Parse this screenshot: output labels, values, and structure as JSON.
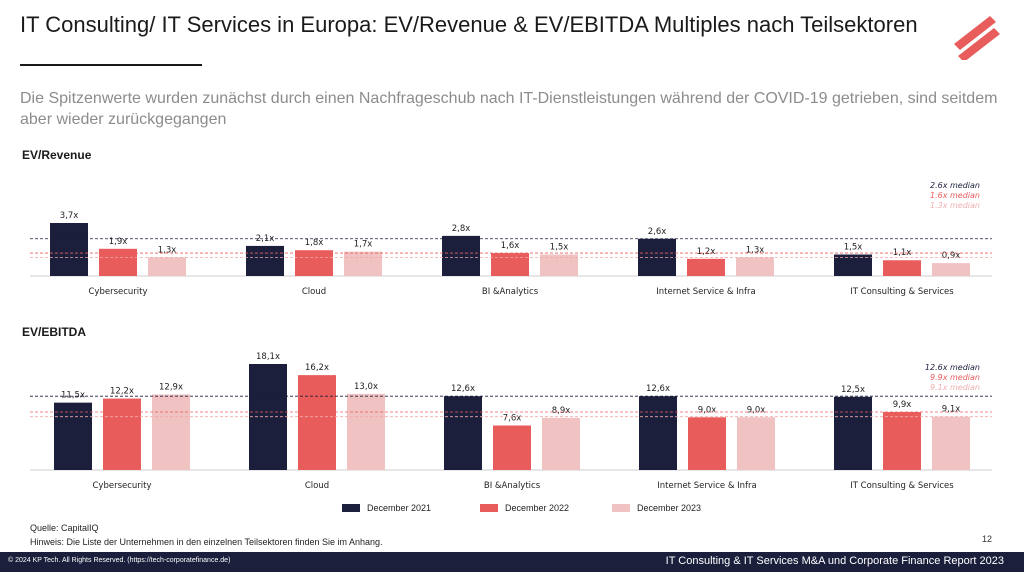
{
  "header": {
    "title": "IT Consulting/ IT Services in Europa: EV/Revenue & EV/EBITDA Multiples nach Teilsektoren",
    "subtitle": "Die Spitzenwerte wurden zunächst durch einen Nachfrageschub nach IT-Dienstleistungen während der COVID-19 getrieben, sind seitdem aber wieder zurückgegangen"
  },
  "colors": {
    "dec2021": "#1b1f3b",
    "dec2022": "#e85c5c",
    "dec2023": "#f0c2c2",
    "logo": "#e85c5c"
  },
  "chart_data": [
    {
      "type": "bar",
      "title": "EV/Revenue",
      "categories": [
        "Cybersecurity",
        "Cloud",
        "BI &Analytics",
        "Internet Service & Infra",
        "IT Consulting & Services"
      ],
      "series": [
        {
          "name": "December 2021",
          "values": [
            3.7,
            2.1,
            2.8,
            2.6,
            1.5
          ],
          "labels": [
            "3,7x",
            "2,1x",
            "2,8x",
            "2,6x",
            "1,5x"
          ]
        },
        {
          "name": "December 2022",
          "values": [
            1.9,
            1.8,
            1.6,
            1.2,
            1.1
          ],
          "labels": [
            "1,9x",
            "1,8x",
            "1,6x",
            "1,2x",
            "1,1x"
          ]
        },
        {
          "name": "December 2023",
          "values": [
            1.3,
            1.7,
            1.5,
            1.3,
            0.9
          ],
          "labels": [
            "1,3x",
            "1,7x",
            "1,5x",
            "1,3x",
            "0,9x"
          ]
        }
      ],
      "medians": [
        {
          "label": "2.6x median",
          "value": 2.6
        },
        {
          "label": "1.6x median",
          "value": 1.6
        },
        {
          "label": "1.3x median",
          "value": 1.3
        }
      ],
      "ylim": [
        0,
        3.7
      ]
    },
    {
      "type": "bar",
      "title": "EV/EBITDA",
      "categories": [
        "Cybersecurity",
        "Cloud",
        "BI &Analytics",
        "Internet Service & Infra",
        "IT Consulting & Services"
      ],
      "series": [
        {
          "name": "December 2021",
          "values": [
            11.5,
            18.1,
            12.6,
            12.6,
            12.5
          ],
          "labels": [
            "11,5x",
            "18,1x",
            "12,6x",
            "12,6x",
            "12,5x"
          ]
        },
        {
          "name": "December 2022",
          "values": [
            12.2,
            16.2,
            7.6,
            9.0,
            9.9
          ],
          "labels": [
            "12,2x",
            "16,2x",
            "7,6x",
            "9,0x",
            "9,9x"
          ]
        },
        {
          "name": "December 2023",
          "values": [
            12.9,
            13.0,
            8.9,
            9.0,
            9.1
          ],
          "labels": [
            "12,9x",
            "13,0x",
            "8,9x",
            "9,0x",
            "9,1x"
          ]
        }
      ],
      "medians": [
        {
          "label": "12.6x median",
          "value": 12.6
        },
        {
          "label": "9.9x median",
          "value": 9.9
        },
        {
          "label": "9.1x median",
          "value": 9.1
        }
      ],
      "ylim": [
        0,
        18.1
      ]
    }
  ],
  "legend": [
    "December 2021",
    "December 2022",
    "December 2023"
  ],
  "notes": {
    "source": "Quelle: CapitalIQ",
    "hint": "Hinweis: Die Liste der Unternehmen in den einzelnen Teilsektoren finden Sie im Anhang.",
    "page": "12"
  },
  "footer": {
    "left": "© 2024 KP Tech. All Rights Reserved. (https://tech-corporatefinance.de)",
    "right": "IT Consulting & IT Services  M&A und Corporate Finance Report 2023"
  }
}
